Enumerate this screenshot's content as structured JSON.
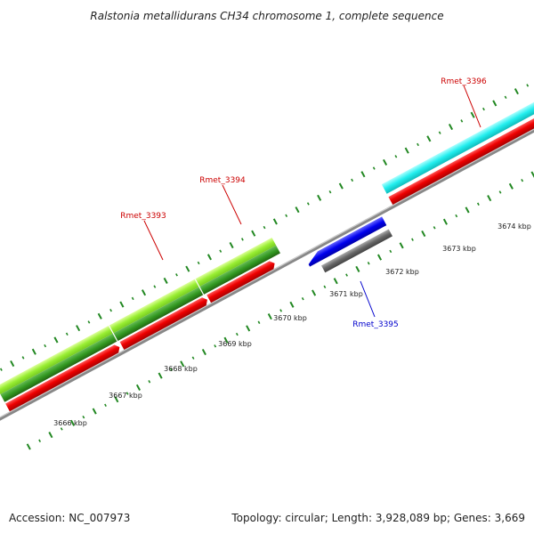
{
  "title": "Ralstonia metallidurans CH34 chromosome 1, complete sequence",
  "footer": {
    "accession": "Accession: NC_007973",
    "summary": "Topology: circular; Length: 3,928,089 bp; Genes: 3,669"
  },
  "kbp_labels": [
    "3666 kbp",
    "3667 kbp",
    "3668 kbp",
    "3669 kbp",
    "3670 kbp",
    "3671 kbp",
    "3672 kbp",
    "3673 kbp",
    "3674 kbp"
  ],
  "gene_labels": [
    {
      "text": "Rmet_3393",
      "color": "#cc0000"
    },
    {
      "text": "Rmet_3394",
      "color": "#cc0000"
    },
    {
      "text": "Rmet_3395",
      "color": "#0000cc"
    },
    {
      "text": "Rmet_3396",
      "color": "#cc0000"
    }
  ],
  "colors": {
    "forward_cds": "#ee0000",
    "reverse_cds": "#0000ee",
    "rna_light": "#99ee33",
    "rna_dark": "#339922",
    "cyan_feature": "#22eeee",
    "gray_feature": "#666666",
    "backbone": "#888888",
    "ticks": "#228822"
  }
}
